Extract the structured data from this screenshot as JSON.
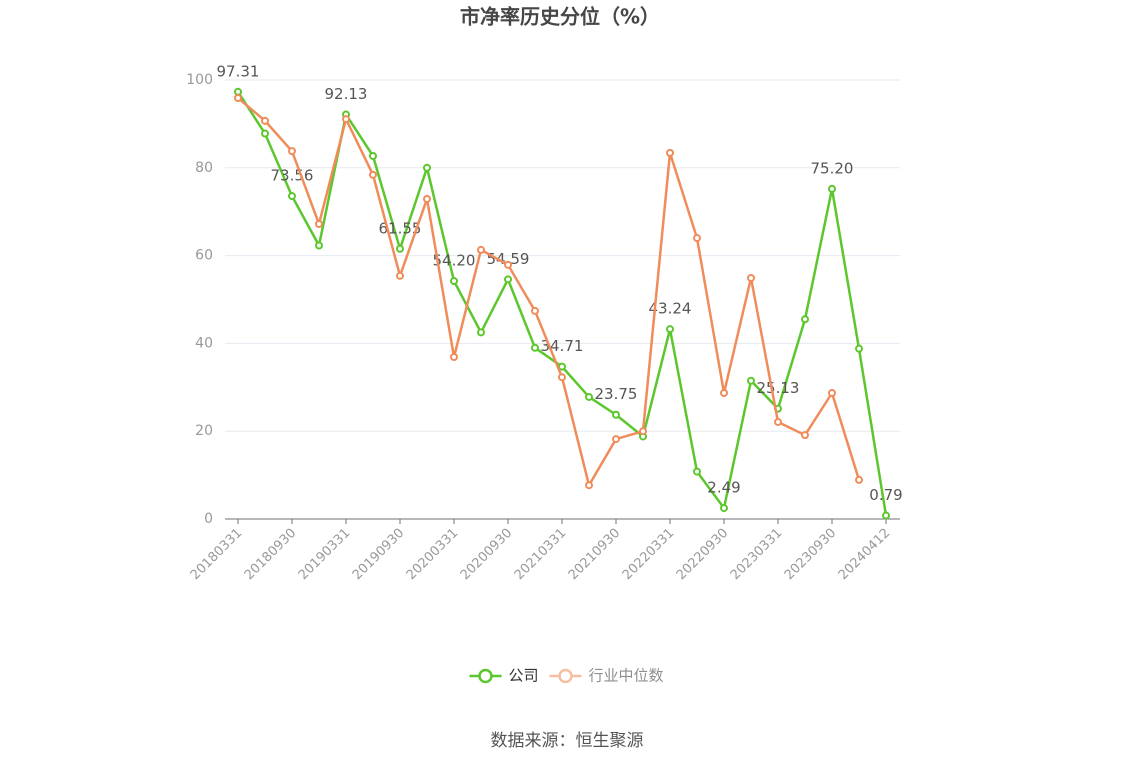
{
  "chart_data": {
    "type": "line",
    "title": "市净率历史分位（%）",
    "categories": [
      "20180331",
      null,
      "20180930",
      null,
      "20190331",
      null,
      "20190930",
      null,
      "20200331",
      null,
      "20200930",
      null,
      "20210331",
      null,
      "20210930",
      null,
      "20220331",
      null,
      "20220930",
      null,
      "20230331",
      null,
      "20230930",
      null,
      "20240412"
    ],
    "series": [
      {
        "name": "公司",
        "color": "#5cc72c",
        "values": [
          97.31,
          87.8,
          73.56,
          62.3,
          92.13,
          82.7,
          61.55,
          80.0,
          54.2,
          42.5,
          54.59,
          39.0,
          34.71,
          27.8,
          23.75,
          18.8,
          43.24,
          10.8,
          2.49,
          31.5,
          25.13,
          45.5,
          75.2,
          38.8,
          0.79
        ],
        "value_labels": [
          "97.31",
          null,
          "73.56",
          null,
          "92.13",
          null,
          "61.55",
          null,
          "54.20",
          null,
          "54.59",
          null,
          "34.71",
          null,
          "23.75",
          null,
          "43.24",
          null,
          "2.49",
          null,
          "25.13",
          null,
          "75.20",
          null,
          "0.79"
        ]
      },
      {
        "name": "行业中位数",
        "color": "#f08c5a",
        "values": [
          95.9,
          90.7,
          83.8,
          67.2,
          91.1,
          78.4,
          55.4,
          72.9,
          36.9,
          61.3,
          57.9,
          47.4,
          32.3,
          7.7,
          18.2,
          20.0,
          83.4,
          64.0,
          28.7,
          54.9,
          22.1,
          19.1,
          28.7,
          8.9,
          null
        ]
      }
    ],
    "ylim": [
      0,
      100
    ],
    "yticks": [
      0,
      20,
      40,
      60,
      80,
      100
    ],
    "grid": true,
    "legend": "bottom",
    "source": "数据来源：恒生聚源"
  }
}
